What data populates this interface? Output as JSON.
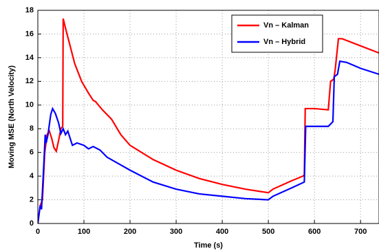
{
  "chart_data": {
    "type": "line",
    "xlabel": "Time (s)",
    "ylabel": "Moving MSE (North Velocity)",
    "xlim": [
      0,
      740
    ],
    "xticks": [
      0,
      100,
      200,
      300,
      400,
      500,
      600,
      700
    ],
    "ylim": [
      0,
      18
    ],
    "yticks": [
      0,
      2,
      4,
      6,
      8,
      10,
      12,
      14,
      16,
      18
    ],
    "grid": true,
    "legend": "upper right",
    "series": [
      {
        "name": "Vn – Kalman",
        "color": "#ff0000",
        "x": [
          0,
          5,
          10,
          15,
          20,
          25,
          30,
          35,
          40,
          45,
          50,
          54,
          55,
          60,
          70,
          80,
          95,
          110,
          120,
          125,
          140,
          160,
          180,
          200,
          250,
          300,
          350,
          400,
          450,
          500,
          510,
          550,
          575,
          578,
          580,
          600,
          630,
          635,
          642,
          645,
          652,
          660,
          700,
          740
        ],
        "values": [
          0,
          1.5,
          2,
          6,
          7.5,
          7.8,
          7.2,
          6.4,
          6.1,
          7,
          8,
          8.2,
          17.3,
          16.5,
          15,
          13.5,
          12,
          11,
          10.4,
          10.3,
          9.6,
          8.8,
          7.5,
          6.6,
          5.4,
          4.5,
          3.8,
          3.3,
          2.9,
          2.6,
          2.9,
          3.6,
          4.0,
          4.1,
          9.7,
          9.7,
          9.6,
          12,
          12.2,
          13,
          15.6,
          15.6,
          15,
          14.4
        ]
      },
      {
        "name": "Vn – Hybrid",
        "color": "#0000ff",
        "x": [
          0,
          5,
          8,
          13,
          16,
          18,
          22,
          28,
          32,
          38,
          45,
          50,
          55,
          60,
          65,
          75,
          85,
          100,
          110,
          120,
          135,
          150,
          200,
          250,
          300,
          350,
          400,
          450,
          500,
          510,
          550,
          578,
          581,
          630,
          640,
          643,
          650,
          655,
          670,
          700,
          740
        ],
        "values": [
          0,
          1.5,
          1.2,
          5,
          7.5,
          6.8,
          7.5,
          9.2,
          9.7,
          9.3,
          8.5,
          7.6,
          8,
          7.5,
          7.8,
          6.6,
          6.8,
          6.6,
          6.3,
          6.5,
          6.2,
          5.6,
          4.5,
          3.5,
          2.9,
          2.5,
          2.3,
          2.1,
          2.0,
          2.3,
          3.0,
          3.5,
          8.2,
          8.2,
          8.6,
          12.4,
          12.6,
          13.7,
          13.6,
          13.1,
          12.6
        ]
      }
    ]
  }
}
